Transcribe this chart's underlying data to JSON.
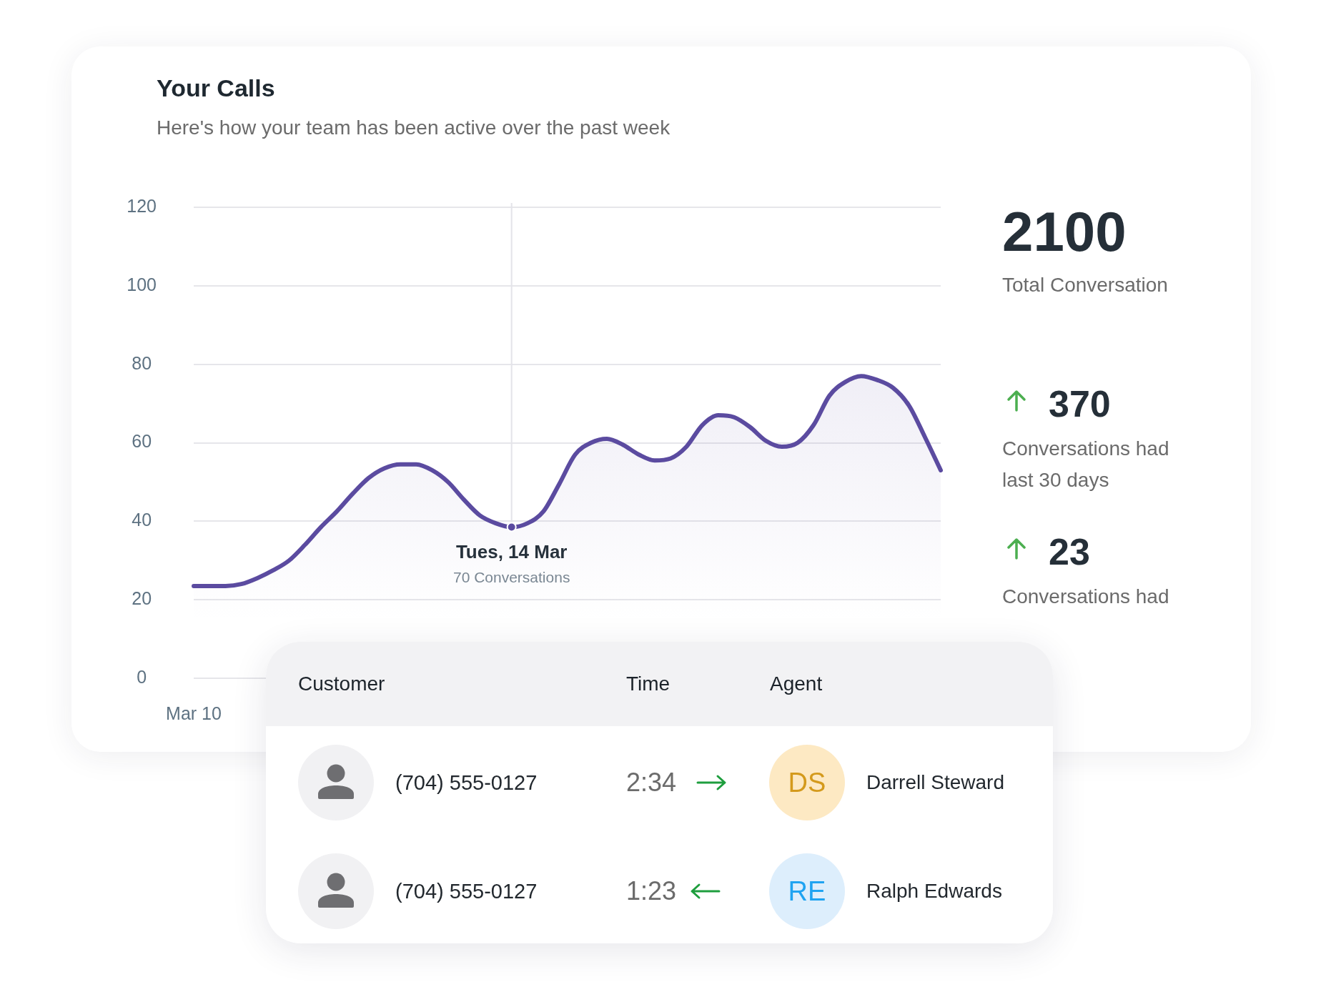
{
  "chart_data": [
    {
      "type": "area",
      "title": "Your Calls",
      "subtitle": "Here's how your team has been active over the past week",
      "categories": [
        "Mar 10",
        null,
        null,
        null,
        null,
        null,
        null,
        null,
        null,
        null,
        null,
        null,
        null,
        null,
        null,
        null,
        null,
        null,
        null,
        null,
        "Tues, 14 Mar",
        null,
        null,
        null,
        null,
        null,
        null,
        null,
        null,
        null,
        null,
        null,
        null,
        null,
        null,
        null,
        null,
        null,
        null,
        null,
        null,
        null,
        null,
        null,
        null,
        null,
        null,
        null
      ],
      "series": [
        {
          "color": "#5b4ba0",
          "values": [
            23.5,
            23.5,
            23.5,
            24,
            25.5,
            27.5,
            30,
            34,
            38.5,
            42.5,
            47,
            51,
            53.5,
            54.5,
            54.5,
            53,
            50,
            45.5,
            41.5,
            39.5,
            38.5,
            39.5,
            42.5,
            49.5,
            57,
            60,
            61,
            59.5,
            57,
            55.5,
            56,
            59,
            64.5,
            67,
            66.5,
            64,
            60.5,
            59,
            60,
            64.5,
            72,
            75.5,
            77,
            76,
            74,
            69.5,
            61.5,
            53
          ]
        },
        {
          "type": "scatter",
          "x": [
            "Tues, 14 Mar"
          ],
          "values": [
            38.5
          ],
          "color": "#5b4ba0",
          "marker": "circle"
        }
      ],
      "ylim": [
        0,
        120
      ],
      "yticks": [
        0,
        20,
        40,
        60,
        80,
        100,
        120
      ],
      "grid": "y",
      "ref_lines": [
        {
          "axis": "x",
          "value": "Tues, 14 Mar",
          "color": "#e4e4e9"
        }
      ],
      "annotations": [
        {
          "text": "70 Conversations",
          "x": "Tues, 14 Mar",
          "y": 38.5
        }
      ]
    },
    {
      "type": "other",
      "annotations": [
        "2100",
        "Total Conversation",
        "370",
        "Conversations had last 30 days",
        "23",
        "Conversations had"
      ]
    },
    {
      "type": "other",
      "annotations": [
        "Customer",
        "Time",
        "Agent",
        "(704) 555-0127",
        "2:34",
        "DS",
        "Darrell Steward",
        "(704) 555-0127",
        "1:23",
        "RE",
        "Ralph Edwards"
      ]
    }
  ]
}
